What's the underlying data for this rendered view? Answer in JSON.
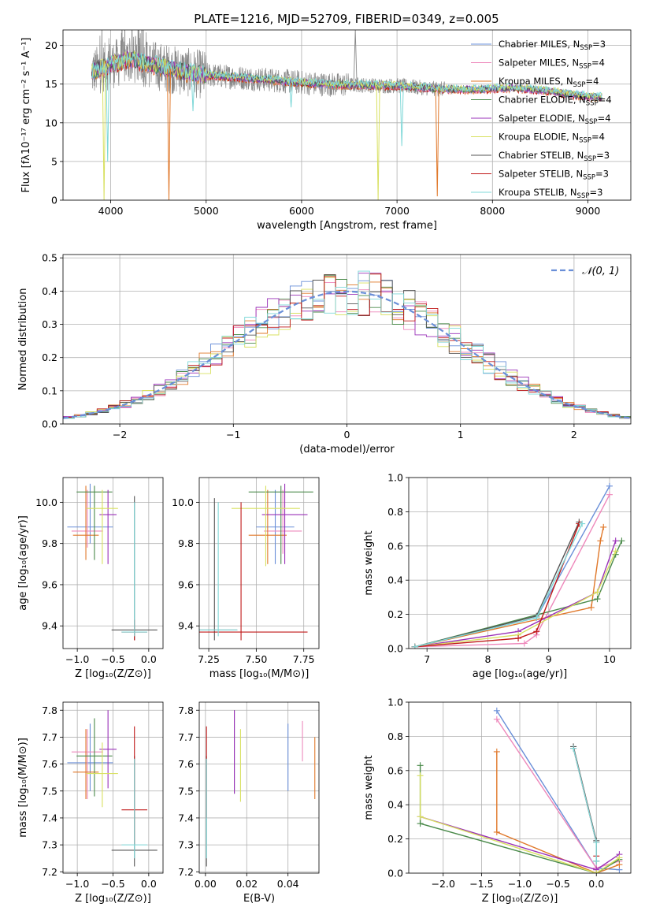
{
  "figure_title": "PLATE=1216, MJD=52709, FIBERID=0349, z=0.005",
  "colors": {
    "c1": "#6a8fd8",
    "c2": "#ee88bb",
    "c3": "#e0782a",
    "c4": "#4a8a4a",
    "c5": "#9a30b8",
    "c6": "#d8e060",
    "c7": "#555555",
    "c8": "#c01818",
    "c9": "#7fd8d8",
    "data": "#888888"
  },
  "chart_data": [
    {
      "id": "spectrum",
      "type": "line",
      "title": "PLATE=1216, MJD=52709, FIBERID=0349, z=0.005",
      "xlabel": "wavelength [Angstrom, rest frame]",
      "ylabel": "Flux [fλ10⁻¹⁷ erg cm⁻² s⁻¹ A⁻¹]",
      "xlim": [
        3500,
        9450
      ],
      "ylim": [
        0,
        22
      ],
      "xticks": [
        4000,
        5000,
        6000,
        7000,
        8000,
        9000
      ],
      "yticks": [
        0,
        5,
        10,
        15,
        20
      ],
      "legend": "top-right",
      "legend_entries": [
        {
          "label": "Chabrier MILES, N",
          "sub": "SSP",
          "tail": "=3",
          "color": "c1"
        },
        {
          "label": "Salpeter MILES, N",
          "sub": "SSP",
          "tail": "=4",
          "color": "c2"
        },
        {
          "label": "Kroupa MILES, N",
          "sub": "SSP",
          "tail": "=4",
          "color": "c3"
        },
        {
          "label": "Chabrier ELODIE, N",
          "sub": "SSP",
          "tail": "=4",
          "color": "c4"
        },
        {
          "label": "Salpeter ELODIE, N",
          "sub": "SSP",
          "tail": "=4",
          "color": "c5"
        },
        {
          "label": "Kroupa ELODIE, N",
          "sub": "SSP",
          "tail": "=4",
          "color": "c6"
        },
        {
          "label": "Chabrier STELIB, N",
          "sub": "SSP",
          "tail": "=3",
          "color": "c7"
        },
        {
          "label": "Salpeter STELIB, N",
          "sub": "SSP",
          "tail": "=3",
          "color": "c8"
        },
        {
          "label": "Kroupa STELIB, N",
          "sub": "SSP",
          "tail": "=3",
          "color": "c9"
        }
      ],
      "continuum_points": [
        [
          3800,
          16.5
        ],
        [
          4000,
          17.5
        ],
        [
          4200,
          18.2
        ],
        [
          4400,
          17.6
        ],
        [
          4600,
          17.0
        ],
        [
          4800,
          16.5
        ],
        [
          5000,
          16.2
        ],
        [
          5200,
          16.0
        ],
        [
          5400,
          15.8
        ],
        [
          5600,
          15.6
        ],
        [
          5800,
          15.4
        ],
        [
          6000,
          15.2
        ],
        [
          6200,
          15.0
        ],
        [
          6400,
          14.9
        ],
        [
          6600,
          14.9
        ],
        [
          6800,
          14.8
        ],
        [
          7000,
          14.8
        ],
        [
          7200,
          14.6
        ],
        [
          7400,
          14.4
        ],
        [
          7600,
          14.3
        ],
        [
          7800,
          14.3
        ],
        [
          8000,
          14.4
        ],
        [
          8200,
          14.5
        ],
        [
          8400,
          14.3
        ],
        [
          8600,
          14.1
        ],
        [
          8800,
          13.7
        ],
        [
          9000,
          13.4
        ],
        [
          9150,
          13.3
        ]
      ],
      "dips": [
        {
          "x": 3930,
          "y": 0.0,
          "color": "c6"
        },
        {
          "x": 3968,
          "y": 5.0,
          "color": "c9"
        },
        {
          "x": 4610,
          "y": 0.0,
          "color": "c3"
        },
        {
          "x": 4862,
          "y": 11.5,
          "color": "c9"
        },
        {
          "x": 5890,
          "y": 12.0,
          "color": "c9"
        },
        {
          "x": 6802,
          "y": 0.0,
          "color": "c6"
        },
        {
          "x": 7050,
          "y": 7.0,
          "color": "c9"
        },
        {
          "x": 7422,
          "y": 0.5,
          "color": "c3"
        }
      ],
      "emission": [
        {
          "x": 6563,
          "y": 22.0
        }
      ]
    },
    {
      "id": "residuals",
      "type": "line",
      "xlabel": "(data-model)/error",
      "ylabel": "Normed distribution",
      "xlim": [
        -2.5,
        2.5
      ],
      "ylim": [
        0,
        0.51
      ],
      "xticks": [
        -2,
        -1,
        0,
        1,
        2
      ],
      "yticks": [
        0.0,
        0.1,
        0.2,
        0.3,
        0.4,
        0.5
      ],
      "legend": "top-right",
      "legend_entries": [
        {
          "label": "𝒩(0, 1)",
          "color": "c1"
        }
      ],
      "gaussian": {
        "mean": 0,
        "sigma": 1
      }
    },
    {
      "id": "z-age",
      "type": "scatter",
      "xlabel": "Z [log₁₀(Z/Z⊙)]",
      "ylabel": "age  [log₁₀(age/yr)]",
      "xlim": [
        -1.2,
        0.2
      ],
      "ylim": [
        9.29,
        10.12
      ],
      "xticks": [
        -1.0,
        -0.5,
        0.0
      ],
      "yticks": [
        9.4,
        9.6,
        9.8,
        10.0
      ],
      "points": [
        {
          "x": -0.82,
          "y": 9.88,
          "xerr": 0.32,
          "ylo": 9.8,
          "yhi": 10.09,
          "color": "c1"
        },
        {
          "x": -0.86,
          "y": 9.86,
          "xerr": 0.22,
          "ylo": 9.78,
          "yhi": 10.06,
          "color": "c2"
        },
        {
          "x": -0.88,
          "y": 9.84,
          "xerr": 0.18,
          "ylo": 9.72,
          "yhi": 10.08,
          "color": "c3"
        },
        {
          "x": -0.76,
          "y": 10.05,
          "xerr": 0.25,
          "ylo": 9.72,
          "yhi": 10.08,
          "color": "c4"
        },
        {
          "x": -0.57,
          "y": 9.94,
          "xerr": 0.12,
          "ylo": 9.7,
          "yhi": 10.06,
          "color": "c5"
        },
        {
          "x": -0.65,
          "y": 9.97,
          "xerr": 0.22,
          "ylo": 9.7,
          "yhi": 10.06,
          "color": "c6"
        },
        {
          "x": -0.2,
          "y": 9.38,
          "xerr": 0.32,
          "ylo": 9.33,
          "yhi": 10.03,
          "color": "c7"
        },
        {
          "x": -0.2,
          "y": 9.37,
          "xerr": 0.18,
          "ylo": 9.33,
          "yhi": 9.43,
          "color": "c8"
        },
        {
          "x": -0.2,
          "y": 9.37,
          "xerr": 0.18,
          "ylo": 9.35,
          "yhi": 10.0,
          "color": "c9"
        }
      ]
    },
    {
      "id": "mass-age",
      "type": "scatter",
      "xlabel": "mass [log₁₀(M/M⊙)]",
      "ylabel": "",
      "xlim": [
        7.2,
        7.83
      ],
      "ylim": [
        9.29,
        10.12
      ],
      "xticks": [
        7.25,
        7.5,
        7.75
      ],
      "yticks": [
        9.4,
        9.6,
        9.8,
        10.0
      ],
      "points": [
        {
          "x": 7.6,
          "y": 9.88,
          "xerr": 0.1,
          "ylo": 9.7,
          "yhi": 10.06,
          "color": "c1"
        },
        {
          "x": 7.64,
          "y": 9.86,
          "xerr": 0.1,
          "ylo": 9.75,
          "yhi": 10.06,
          "color": "c2"
        },
        {
          "x": 7.56,
          "y": 9.84,
          "xerr": 0.1,
          "ylo": 9.7,
          "yhi": 10.06,
          "color": "c3"
        },
        {
          "x": 7.63,
          "y": 10.05,
          "xerr": 0.17,
          "ylo": 9.7,
          "yhi": 10.08,
          "color": "c4"
        },
        {
          "x": 7.65,
          "y": 9.94,
          "xerr": 0.12,
          "ylo": 9.7,
          "yhi": 10.09,
          "color": "c5"
        },
        {
          "x": 7.55,
          "y": 9.97,
          "xerr": 0.18,
          "ylo": 9.69,
          "yhi": 10.08,
          "color": "c6"
        },
        {
          "x": 7.28,
          "y": 9.38,
          "xerr": 0.12,
          "ylo": 9.33,
          "yhi": 10.02,
          "color": "c7"
        },
        {
          "x": 7.42,
          "y": 9.37,
          "xerr": 0.35,
          "ylo": 9.33,
          "yhi": 10.0,
          "color": "c8"
        },
        {
          "x": 7.3,
          "y": 9.38,
          "xerr": 0.1,
          "ylo": 9.35,
          "yhi": 10.0,
          "color": "c9"
        }
      ]
    },
    {
      "id": "age-weight",
      "type": "line",
      "xlabel": "age  [log₁₀(age/yr)]",
      "ylabel": "mass weight",
      "xlim": [
        6.7,
        10.35
      ],
      "ylim": [
        0,
        1.0
      ],
      "xticks": [
        7,
        8,
        9,
        10
      ],
      "yticks": [
        0.0,
        0.2,
        0.4,
        0.6,
        0.8,
        1.0
      ],
      "series": [
        {
          "color": "c1",
          "x": [
            6.8,
            8.8,
            10.0
          ],
          "y": [
            0.01,
            0.18,
            0.95
          ]
        },
        {
          "color": "c2",
          "x": [
            6.8,
            8.6,
            8.8,
            10.0
          ],
          "y": [
            0.01,
            0.03,
            0.08,
            0.9
          ]
        },
        {
          "color": "c3",
          "x": [
            6.8,
            9.7,
            9.85,
            9.9
          ],
          "y": [
            0.01,
            0.24,
            0.63,
            0.71
          ]
        },
        {
          "color": "c4",
          "x": [
            6.8,
            9.8,
            10.1,
            10.2
          ],
          "y": [
            0.01,
            0.29,
            0.55,
            0.63
          ]
        },
        {
          "color": "c5",
          "x": [
            6.8,
            8.5,
            9.8,
            10.1
          ],
          "y": [
            0.01,
            0.1,
            0.33,
            0.63
          ]
        },
        {
          "color": "c6",
          "x": [
            6.8,
            8.5,
            9.8,
            10.1
          ],
          "y": [
            0.01,
            0.08,
            0.33,
            0.57
          ]
        },
        {
          "color": "c7",
          "x": [
            6.8,
            8.8,
            9.5
          ],
          "y": [
            0.01,
            0.19,
            0.74
          ]
        },
        {
          "color": "c8",
          "x": [
            6.8,
            8.5,
            8.8,
            9.5
          ],
          "y": [
            0.01,
            0.06,
            0.1,
            0.73
          ]
        },
        {
          "color": "c9",
          "x": [
            6.8,
            8.8,
            9.55
          ],
          "y": [
            0.01,
            0.18,
            0.73
          ]
        }
      ]
    },
    {
      "id": "z-mass",
      "type": "scatter",
      "xlabel": "Z [log₁₀(Z/Z⊙)]",
      "ylabel": "mass [log₁₀(M/M⊙)]",
      "xlim": [
        -1.2,
        0.2
      ],
      "ylim": [
        7.195,
        7.83
      ],
      "xticks": [
        -1.0,
        -0.5,
        0.0
      ],
      "yticks": [
        7.2,
        7.3,
        7.4,
        7.5,
        7.6,
        7.7,
        7.8
      ],
      "points": [
        {
          "x": -0.82,
          "y": 7.605,
          "xerr": 0.32,
          "ylo": 7.5,
          "yhi": 7.75,
          "color": "c1"
        },
        {
          "x": -0.86,
          "y": 7.645,
          "xerr": 0.22,
          "ylo": 7.47,
          "yhi": 7.73,
          "color": "c2"
        },
        {
          "x": -0.88,
          "y": 7.57,
          "xerr": 0.18,
          "ylo": 7.47,
          "yhi": 7.73,
          "color": "c3"
        },
        {
          "x": -0.76,
          "y": 7.63,
          "xerr": 0.25,
          "ylo": 7.48,
          "yhi": 7.77,
          "color": "c4"
        },
        {
          "x": -0.57,
          "y": 7.655,
          "xerr": 0.12,
          "ylo": 7.51,
          "yhi": 7.8,
          "color": "c5"
        },
        {
          "x": -0.65,
          "y": 7.565,
          "xerr": 0.22,
          "ylo": 7.44,
          "yhi": 7.68,
          "color": "c6"
        },
        {
          "x": -0.2,
          "y": 7.28,
          "xerr": 0.32,
          "ylo": 7.22,
          "yhi": 7.63,
          "color": "c7"
        },
        {
          "x": -0.2,
          "y": 7.43,
          "xerr": 0.18,
          "ylo": 7.3,
          "yhi": 7.74,
          "color": "c8"
        },
        {
          "x": -0.2,
          "y": 7.3,
          "xerr": 0.18,
          "ylo": 7.25,
          "yhi": 7.62,
          "color": "c9"
        }
      ]
    },
    {
      "id": "ebv-mass",
      "type": "scatter",
      "xlabel": "E(B-V)",
      "ylabel": "",
      "xlim": [
        -0.003,
        0.055
      ],
      "ylim": [
        7.195,
        7.83
      ],
      "xticks": [
        0.0,
        0.02,
        0.04
      ],
      "yticks": [
        7.2,
        7.3,
        7.4,
        7.5,
        7.6,
        7.7,
        7.8
      ],
      "points": [
        {
          "x": 0.04,
          "y": 7.605,
          "xerr": 0,
          "ylo": 7.5,
          "yhi": 7.75,
          "color": "c1"
        },
        {
          "x": 0.047,
          "y": 7.645,
          "xerr": 0,
          "ylo": 7.61,
          "yhi": 7.76,
          "color": "c2"
        },
        {
          "x": 0.053,
          "y": 7.57,
          "xerr": 0,
          "ylo": 7.47,
          "yhi": 7.7,
          "color": "c3"
        },
        {
          "x": 0.014,
          "y": 7.63,
          "xerr": 0,
          "ylo": 7.49,
          "yhi": 7.8,
          "color": "c4"
        },
        {
          "x": 0.014,
          "y": 7.655,
          "xerr": 0,
          "ylo": 7.49,
          "yhi": 7.8,
          "color": "c5"
        },
        {
          "x": 0.017,
          "y": 7.565,
          "xerr": 0,
          "ylo": 7.46,
          "yhi": 7.73,
          "color": "c6"
        },
        {
          "x": 0.0005,
          "y": 7.28,
          "xerr": 0,
          "ylo": 7.22,
          "yhi": 7.63,
          "color": "c7"
        },
        {
          "x": 0.0005,
          "y": 7.43,
          "xerr": 0,
          "ylo": 7.4,
          "yhi": 7.74,
          "color": "c8"
        },
        {
          "x": 0.0005,
          "y": 7.3,
          "xerr": 0,
          "ylo": 7.25,
          "yhi": 7.62,
          "color": "c9"
        }
      ]
    },
    {
      "id": "z-weight",
      "type": "line",
      "xlabel": "Z [log₁₀(Z/Z⊙)]",
      "ylabel": "mass weight",
      "xlim": [
        -2.45,
        0.45
      ],
      "ylim": [
        0,
        1.0
      ],
      "xticks": [
        -2.0,
        -1.5,
        -1.0,
        -0.5,
        0.0
      ],
      "yticks": [
        0.0,
        0.2,
        0.4,
        0.6,
        0.8,
        1.0
      ],
      "series": [
        {
          "color": "c1",
          "x": [
            -1.3,
            0.0,
            0.3
          ],
          "y": [
            0.95,
            0.03,
            0.02
          ]
        },
        {
          "color": "c2",
          "x": [
            -1.3,
            0.0,
            0.3
          ],
          "y": [
            0.9,
            0.03,
            0.07
          ]
        },
        {
          "color": "c3",
          "x": [
            -1.3,
            -1.3,
            0.0,
            0.3
          ],
          "y": [
            0.71,
            0.24,
            0.0,
            0.05
          ]
        },
        {
          "color": "c4",
          "x": [
            -2.3,
            -2.3,
            0.0,
            0.3
          ],
          "y": [
            0.63,
            0.29,
            0.0,
            0.08
          ]
        },
        {
          "color": "c5",
          "x": [
            -2.3,
            0.0,
            0.3
          ],
          "y": [
            0.33,
            0.02,
            0.11
          ]
        },
        {
          "color": "c6",
          "x": [
            -2.3,
            -2.3,
            0.0,
            0.3
          ],
          "y": [
            0.57,
            0.33,
            0.0,
            0.09
          ]
        },
        {
          "color": "c7",
          "x": [
            -0.3,
            0.0,
            0.0
          ],
          "y": [
            0.74,
            0.19,
            0.07
          ]
        },
        {
          "color": "c8",
          "x": [
            -0.3,
            0.0,
            0.0
          ],
          "y": [
            0.73,
            0.18,
            0.1
          ]
        },
        {
          "color": "c9",
          "x": [
            -0.3,
            0.0,
            0.0
          ],
          "y": [
            0.73,
            0.18,
            0.07
          ]
        }
      ]
    }
  ]
}
